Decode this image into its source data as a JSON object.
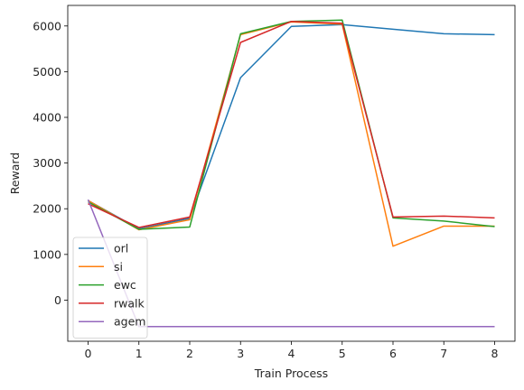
{
  "chart_data": {
    "type": "line",
    "title": "",
    "xlabel": "Train Process",
    "ylabel": "Reward",
    "x": [
      0,
      1,
      2,
      3,
      4,
      5,
      6,
      7,
      8
    ],
    "xlim": [
      -0.4,
      8.4
    ],
    "ylim": [
      -900,
      6450
    ],
    "xticks": [
      0,
      1,
      2,
      3,
      4,
      5,
      6,
      7,
      8
    ],
    "yticks": [
      0,
      1000,
      2000,
      3000,
      4000,
      5000,
      6000
    ],
    "grid": false,
    "legend_position": "lower-left",
    "series": [
      {
        "name": "orl",
        "color": "#1f77b4",
        "values": [
          2180,
          1560,
          1790,
          4870,
          5990,
          6030,
          5930,
          5830,
          5810
        ]
      },
      {
        "name": "si",
        "color": "#ff7f0e",
        "values": [
          2180,
          1540,
          1760,
          5810,
          6090,
          6040,
          1180,
          1620,
          1620
        ]
      },
      {
        "name": "ewc",
        "color": "#2ca02c",
        "values": [
          2150,
          1550,
          1600,
          5830,
          6100,
          6130,
          1800,
          1730,
          1610
        ]
      },
      {
        "name": "rwalk",
        "color": "#d62728",
        "values": [
          2110,
          1590,
          1820,
          5640,
          6100,
          6060,
          1820,
          1840,
          1800
        ]
      },
      {
        "name": "agem",
        "color": "#9467bd",
        "values": [
          2200,
          -580,
          -580,
          -580,
          -580,
          -580,
          -580,
          -580,
          -580
        ]
      }
    ]
  }
}
